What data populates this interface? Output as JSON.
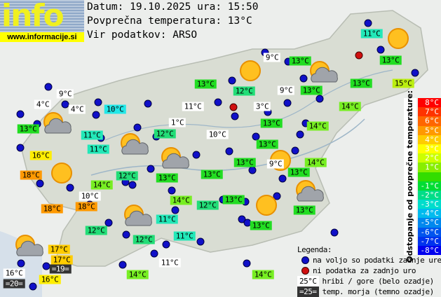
{
  "logo": {
    "text": "info",
    "url": "www.informacije.si"
  },
  "header": {
    "date_line": "Datum: 19.10.2025 ura: 15:50",
    "avg_line": "Povprečna temperatura: 13°C",
    "source_line": "Vir podatkov: ARSO"
  },
  "colors": {
    "white": "#ffffff",
    "dark": "#333333",
    "c10": "#22e8e8",
    "c11": "#22e8b8",
    "c12": "#22dd77",
    "c13": "#22dd22",
    "c14": "#77ee22",
    "c15": "#bbee11",
    "c16": "#ffee00",
    "c17": "#ffcc00",
    "c18": "#ff9900",
    "station_dot": "#1010c8",
    "missing_dot": "#d01010"
  },
  "stations": [
    {
      "t": "11°C",
      "c": "c11"
    },
    {
      "t": "13°C",
      "c": "c13"
    },
    {
      "t": "9°C",
      "c": "white"
    },
    {
      "t": "13°C",
      "c": "c13"
    },
    {
      "t": "13°C",
      "c": "c13"
    },
    {
      "t": "12°C",
      "c": "c12"
    },
    {
      "t": "9°C",
      "c": "white"
    },
    {
      "t": "13°C",
      "c": "c13"
    },
    {
      "t": "13°C",
      "c": "c13"
    },
    {
      "t": "15°C",
      "c": "c15"
    },
    {
      "t": "9°C",
      "c": "white"
    },
    {
      "t": "4°C",
      "c": "white"
    },
    {
      "t": "4°C",
      "c": "white"
    },
    {
      "t": "10°C",
      "c": "c10"
    },
    {
      "t": "11°C",
      "c": "white"
    },
    {
      "t": "3°C",
      "c": "white"
    },
    {
      "t": "14°C",
      "c": "c14"
    },
    {
      "t": "13°C",
      "c": "c13"
    },
    {
      "t": "1°C",
      "c": "white"
    },
    {
      "t": "11°C",
      "c": "c11"
    },
    {
      "t": "12°C",
      "c": "c12"
    },
    {
      "t": "10°C",
      "c": "white"
    },
    {
      "t": "13°C",
      "c": "c13"
    },
    {
      "t": "14°C",
      "c": "c14"
    },
    {
      "t": "11°C",
      "c": "c11"
    },
    {
      "t": "13°C",
      "c": "c13"
    },
    {
      "t": "16°C",
      "c": "c16"
    },
    {
      "t": "13°C",
      "c": "c13"
    },
    {
      "t": "9°C",
      "c": "white"
    },
    {
      "t": "14°C",
      "c": "c14"
    },
    {
      "t": "18°C",
      "c": "c18"
    },
    {
      "t": "12°C",
      "c": "c12"
    },
    {
      "t": "13°C",
      "c": "c13"
    },
    {
      "t": "13°C",
      "c": "c13"
    },
    {
      "t": "13°C",
      "c": "c13"
    },
    {
      "t": "14°C",
      "c": "c14"
    },
    {
      "t": "10°C",
      "c": "white"
    },
    {
      "t": "14°C",
      "c": "c14"
    },
    {
      "t": "12°C",
      "c": "c12"
    },
    {
      "t": "13°C",
      "c": "c13"
    },
    {
      "t": "18°C",
      "c": "c18"
    },
    {
      "t": "18°C",
      "c": "c18"
    },
    {
      "t": "13°C",
      "c": "c13"
    },
    {
      "t": "11°C",
      "c": "c11"
    },
    {
      "t": "12°C",
      "c": "c12"
    },
    {
      "t": "12°C",
      "c": "c12"
    },
    {
      "t": "11°C",
      "c": "c11"
    },
    {
      "t": "13°C",
      "c": "c13"
    },
    {
      "t": "17°C",
      "c": "c17"
    },
    {
      "t": "17°C",
      "c": "c17"
    },
    {
      "t": "=19=",
      "c": "dark"
    },
    {
      "t": "16°C",
      "c": "white"
    },
    {
      "t": "=20=",
      "c": "dark"
    },
    {
      "t": "16°C",
      "c": "c16"
    },
    {
      "t": "11°C",
      "c": "white"
    },
    {
      "t": "14°C",
      "c": "c14"
    },
    {
      "t": "14°C",
      "c": "c14"
    }
  ],
  "weather_icons": [
    "sun",
    "sun",
    "sun",
    "sun",
    "sun",
    "sun-cloud",
    "sun-cloud",
    "sun-cloud",
    "sun-cloud",
    "sun-cloud",
    "sun-cloud",
    "sun-cloud"
  ],
  "scale": {
    "title": "Odstopanje od povprečne temperature:",
    "steps": [
      {
        "t": "8°C",
        "c": "#ff0000"
      },
      {
        "t": "7°C",
        "c": "#ff3300"
      },
      {
        "t": "6°C",
        "c": "#ff6600"
      },
      {
        "t": "5°C",
        "c": "#ff9900"
      },
      {
        "t": "4°C",
        "c": "#ffcc00"
      },
      {
        "t": "3°C",
        "c": "#ffff00"
      },
      {
        "t": "2°C",
        "c": "#ccff00"
      },
      {
        "t": "1°C",
        "c": "#88ee00"
      },
      {
        "t": "",
        "c": "#33dd00"
      },
      {
        "t": "-1°C",
        "c": "#00dd33"
      },
      {
        "t": "-2°C",
        "c": "#00dd88"
      },
      {
        "t": "-3°C",
        "c": "#00ddcc"
      },
      {
        "t": "-4°C",
        "c": "#00bbee"
      },
      {
        "t": "-5°C",
        "c": "#0088ee"
      },
      {
        "t": "-6°C",
        "c": "#0055ee"
      },
      {
        "t": "-7°C",
        "c": "#0033ee"
      },
      {
        "t": "-8°C",
        "c": "#0000ee"
      }
    ]
  },
  "legend": {
    "title": "Legenda:",
    "available": "na voljo so podatki zadnje ure",
    "missing": "ni podatka za zadnjo uro",
    "hill_sample": "25°C",
    "hill": "hribi / gore (belo ozadje)",
    "sea_sample": "=25=",
    "sea": "temp. morja (temno ozadje)"
  }
}
